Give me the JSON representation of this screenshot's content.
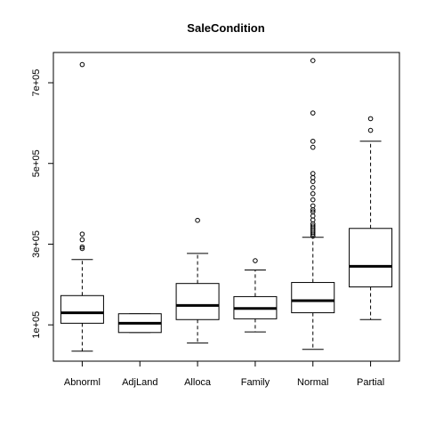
{
  "chart_data": {
    "type": "boxplot",
    "title": "SaleCondition",
    "xlabel": "",
    "ylabel": "",
    "categories": [
      "Abnorml",
      "AdjLand",
      "Alloca",
      "Family",
      "Normal",
      "Partial"
    ],
    "ylim": [
      10000,
      775000
    ],
    "yticks": [
      100000,
      300000,
      500000,
      700000
    ],
    "ytick_labels": [
      "1e+05",
      "3e+05",
      "5e+05",
      "7e+05"
    ],
    "grid": false,
    "boxes": [
      {
        "name": "Abnorml",
        "whisker_low": 34900,
        "q1": 104000,
        "median": 130000,
        "q3": 172500,
        "whisker_high": 262000,
        "outliers": [
          289000,
          293000,
          311000,
          325000,
          745000
        ]
      },
      {
        "name": "AdjLand",
        "whisker_low": 81000,
        "q1": 81000,
        "median": 104000,
        "q3": 127500,
        "whisker_high": 127500,
        "outliers": []
      },
      {
        "name": "Alloca",
        "whisker_low": 55000,
        "q1": 113000,
        "median": 148000,
        "q3": 202500,
        "whisker_high": 277000,
        "outliers": [
          359000
        ]
      },
      {
        "name": "Family",
        "whisker_low": 82500,
        "q1": 115000,
        "median": 140500,
        "q3": 170000,
        "whisker_high": 236000,
        "outliers": [
          259000
        ]
      },
      {
        "name": "Normal",
        "whisker_low": 39300,
        "q1": 130000,
        "median": 160000,
        "q3": 205000,
        "whisker_high": 317000,
        "outliers": [
          320000,
          325000,
          330000,
          335000,
          340000,
          345000,
          350000,
          360000,
          370000,
          380000,
          385000,
          395000,
          410000,
          425000,
          440000,
          455000,
          465000,
          475000,
          540000,
          555000,
          625000,
          755000
        ]
      },
      {
        "name": "Partial",
        "whisker_low": 113000,
        "q1": 194000,
        "median": 245000,
        "q3": 339000,
        "whisker_high": 555000,
        "outliers": [
          582000,
          611000
        ]
      }
    ]
  }
}
